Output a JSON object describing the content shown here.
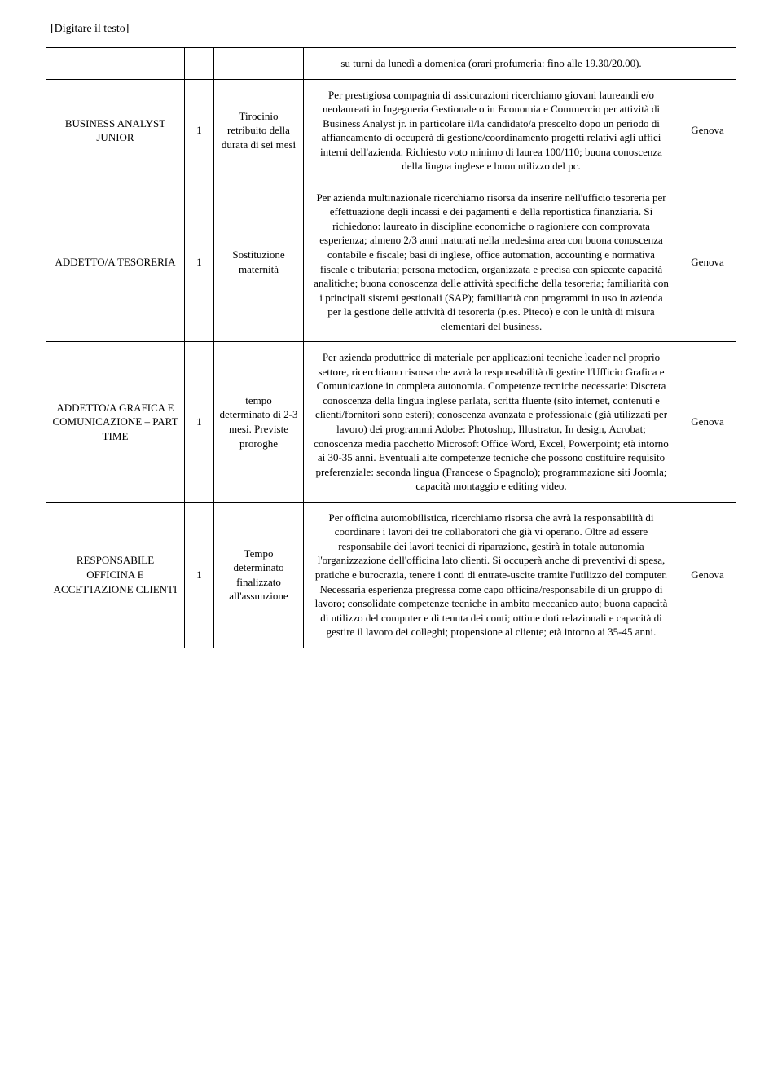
{
  "header": {
    "placeholder": "[Digitare il testo]"
  },
  "top_fragment": {
    "desc": "su turni da lunedì a domenica (orari profumeria: fino alle 19.30/20.00)."
  },
  "rows": [
    {
      "title": "BUSINESS ANALYST JUNIOR",
      "qty": "1",
      "contract": "Tirocinio retribuito della durata di sei mesi",
      "desc": "Per prestigiosa compagnia di assicurazioni ricerchiamo giovani laureandi e/o neolaureati in Ingegneria Gestionale o in Economia e Commercio per attività di Business Analyst jr. in particolare il/la candidato/a prescelto dopo un periodo di affiancamento di occuperà di gestione/coordinamento progetti relativi agli uffici interni dell'azienda. Richiesto voto minimo di laurea 100/110; buona conoscenza della lingua inglese e buon utilizzo del pc.",
      "location": "Genova"
    },
    {
      "title": "ADDETTO/A TESORERIA",
      "qty": "1",
      "contract": "Sostituzione maternità",
      "desc": "Per azienda multinazionale ricerchiamo risorsa da inserire nell'ufficio tesoreria per effettuazione degli incassi e dei pagamenti e della reportistica finanziaria. Si richiedono: laureato in discipline economiche o ragioniere con comprovata esperienza; almeno 2/3 anni maturati nella medesima area con buona conoscenza contabile e fiscale; basi di inglese, office automation, accounting e normativa fiscale e tributaria; persona metodica, organizzata e precisa con spiccate capacità analitiche; buona conoscenza delle attività specifiche della tesoreria; familiarità con i principali sistemi gestionali (SAP); familiarità con programmi in uso in azienda per la gestione delle attività di tesoreria (p.es. Piteco) e con le unità di misura elementari del business.",
      "location": "Genova"
    },
    {
      "title": "ADDETTO/A GRAFICA E COMUNICAZIONE – PART TIME",
      "qty": "1",
      "contract": "tempo determinato di 2-3 mesi. Previste proroghe",
      "desc": "Per azienda produttrice di materiale per applicazioni tecniche leader nel proprio settore, ricerchiamo risorsa che avrà la responsabilità di gestire l'Ufficio Grafica e Comunicazione in completa autonomia. Competenze tecniche necessarie: Discreta conoscenza della lingua inglese parlata, scritta fluente (sito internet, contenuti e clienti/fornitori sono esteri); conoscenza avanzata e professionale (già utilizzati per lavoro) dei programmi Adobe: Photoshop, Illustrator, In design, Acrobat; conoscenza media pacchetto Microsoft Office Word, Excel, Powerpoint; età intorno ai 30-35 anni. Eventuali alte competenze tecniche che possono costituire requisito preferenziale: seconda lingua (Francese o Spagnolo); programmazione siti Joomla; capacità montaggio e editing video.",
      "location": "Genova"
    },
    {
      "title": "RESPONSABILE OFFICINA E ACCETTAZIONE CLIENTI",
      "qty": "1",
      "contract": "Tempo determinato finalizzato all'assunzione",
      "desc": "Per officina automobilistica, ricerchiamo risorsa che avrà la responsabilità di coordinare i lavori dei tre collaboratori che già vi operano. Oltre ad essere responsabile dei lavori tecnici di riparazione, gestirà in totale autonomia l'organizzazione dell'officina lato clienti. Si occuperà anche di preventivi di spesa, pratiche e burocrazia, tenere i conti di entrate-uscite tramite l'utilizzo del computer. Necessaria esperienza pregressa come capo officina/responsabile di un gruppo di lavoro; consolidate competenze tecniche in ambito meccanico auto; buona capacità di utilizzo del computer e di tenuta dei conti; ottime doti relazionali e capacità di gestire il lavoro dei colleghi; propensione al cliente; età intorno ai 35-45 anni.",
      "location": "Genova"
    }
  ]
}
